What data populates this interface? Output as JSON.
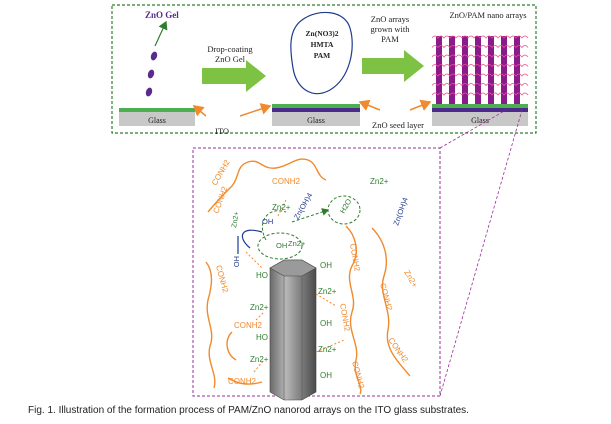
{
  "top_panel": {
    "zno_gel_label": "ZnO Gel",
    "step1_label_line1": "Drop-coating",
    "step1_label_line2": "ZnO Gel",
    "solution_line1": "Zn(NO3)2",
    "solution_line2": "HMTA",
    "solution_line3": "PAM",
    "step2_label_line1": "ZnO arrays",
    "step2_label_line2": "grown with",
    "step2_label_line3": "PAM",
    "product_label": "ZnO/PAM nano arrays",
    "glass_label": "Glass",
    "ito_label": "ITO",
    "seed_label": "ZnO seed layer"
  },
  "zoom_panel": {
    "conh2": "CONH2",
    "zn2plus": "Zn2+",
    "oh": "OH",
    "ho": "HO",
    "h2o": "H2O",
    "znoh4": "Zn(OH)4",
    "znoh4_charge": "2-"
  },
  "colors": {
    "border_green": "#2e7d2e",
    "border_purple": "#9b2c9b",
    "arrow_green": "#7dc242",
    "zno_layer": "#4caf50",
    "ito_layer": "#4b2a8c",
    "glass": "#c8c8c8",
    "polymer": "#f08a2c",
    "zn_text": "#2e7d2e",
    "hydroxyl_blue": "#1f3b8f",
    "nanorod_purple": "#8b1a8b"
  },
  "caption": "Fig. 1.  Illustration of the formation process of PAM/ZnO nanorod arrays on the ITO glass substrates."
}
